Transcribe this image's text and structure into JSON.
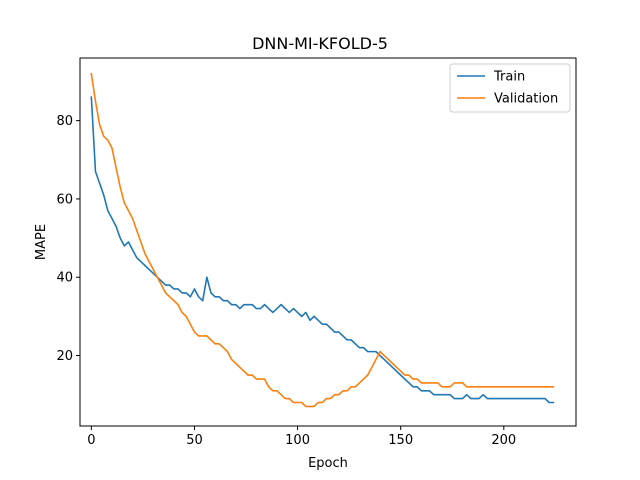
{
  "chart_data": {
    "type": "line",
    "title": "DNN-MI-KFOLD-5",
    "xlabel": "Epoch",
    "ylabel": "MAPE",
    "xlim": [
      -5.5,
      235
    ],
    "ylim": [
      2,
      96
    ],
    "xticks": [
      0,
      50,
      100,
      150,
      200
    ],
    "yticks": [
      20,
      40,
      60,
      80
    ],
    "grid": false,
    "legend_position": "top-right",
    "series": [
      {
        "name": "Train",
        "color": "#1f77b4",
        "x": [
          0,
          2,
          4,
          6,
          8,
          10,
          12,
          14,
          16,
          18,
          20,
          22,
          24,
          26,
          28,
          30,
          32,
          34,
          36,
          38,
          40,
          42,
          44,
          46,
          48,
          50,
          52,
          54,
          56,
          58,
          60,
          62,
          64,
          66,
          68,
          70,
          72,
          74,
          76,
          78,
          80,
          82,
          84,
          86,
          88,
          90,
          92,
          94,
          96,
          98,
          100,
          102,
          104,
          106,
          108,
          110,
          112,
          114,
          116,
          118,
          120,
          122,
          124,
          126,
          128,
          130,
          132,
          134,
          136,
          138,
          140,
          142,
          144,
          146,
          148,
          150,
          152,
          154,
          156,
          158,
          160,
          162,
          164,
          166,
          168,
          170,
          172,
          174,
          176,
          178,
          180,
          182,
          184,
          186,
          188,
          190,
          192,
          194,
          196,
          198,
          200,
          202,
          204,
          206,
          208,
          210,
          212,
          214,
          216,
          218,
          220,
          222,
          224
        ],
        "values": [
          86,
          67,
          64,
          61,
          57,
          55,
          53,
          50,
          48,
          49,
          47,
          45,
          44,
          43,
          42,
          41,
          40,
          39,
          38,
          38,
          37,
          37,
          36,
          36,
          35,
          37,
          35,
          34,
          40,
          36,
          35,
          35,
          34,
          34,
          33,
          33,
          32,
          33,
          33,
          33,
          32,
          32,
          33,
          32,
          31,
          32,
          33,
          32,
          31,
          32,
          31,
          30,
          31,
          29,
          30,
          29,
          28,
          28,
          27,
          26,
          26,
          25,
          24,
          24,
          23,
          22,
          22,
          21,
          21,
          21,
          20,
          19,
          18,
          17,
          16,
          15,
          14,
          13,
          12,
          12,
          11,
          11,
          11,
          10,
          10,
          10,
          10,
          10,
          9,
          9,
          9,
          10,
          9,
          9,
          9,
          10,
          9,
          9,
          9,
          9,
          9,
          9,
          9,
          9,
          9,
          9,
          9,
          9,
          9,
          9,
          9,
          8,
          8
        ]
      },
      {
        "name": "Validation",
        "color": "#ff7f0e",
        "x": [
          0,
          2,
          4,
          6,
          8,
          10,
          12,
          14,
          16,
          18,
          20,
          22,
          24,
          26,
          28,
          30,
          32,
          34,
          36,
          38,
          40,
          42,
          44,
          46,
          48,
          50,
          52,
          54,
          56,
          58,
          60,
          62,
          64,
          66,
          68,
          70,
          72,
          74,
          76,
          78,
          80,
          82,
          84,
          86,
          88,
          90,
          92,
          94,
          96,
          98,
          100,
          102,
          104,
          106,
          108,
          110,
          112,
          114,
          116,
          118,
          120,
          122,
          124,
          126,
          128,
          130,
          132,
          134,
          136,
          138,
          140,
          142,
          144,
          146,
          148,
          150,
          152,
          154,
          156,
          158,
          160,
          162,
          164,
          166,
          168,
          170,
          172,
          174,
          176,
          178,
          180,
          182,
          184,
          186,
          188,
          190,
          192,
          194,
          196,
          198,
          200,
          202,
          204,
          206,
          208,
          210,
          212,
          214,
          216,
          218,
          220,
          222,
          224
        ],
        "values": [
          92,
          85,
          79,
          76,
          75,
          73,
          68,
          63,
          59,
          57,
          55,
          52,
          49,
          46,
          44,
          42,
          40,
          38,
          36,
          35,
          34,
          33,
          31,
          30,
          28,
          26,
          25,
          25,
          25,
          24,
          23,
          23,
          22,
          21,
          19,
          18,
          17,
          16,
          15,
          15,
          14,
          14,
          14,
          12,
          11,
          11,
          10,
          9,
          9,
          8,
          8,
          8,
          7,
          7,
          7,
          8,
          8,
          9,
          9,
          10,
          10,
          11,
          11,
          12,
          12,
          13,
          14,
          15,
          17,
          19,
          21,
          20,
          19,
          18,
          17,
          16,
          15,
          15,
          14,
          14,
          13,
          13,
          13,
          13,
          13,
          12,
          12,
          12,
          13,
          13,
          13,
          12,
          12,
          12,
          12,
          12,
          12,
          12,
          12,
          12,
          12,
          12,
          12,
          12,
          12,
          12,
          12,
          12,
          12,
          12,
          12,
          12,
          12
        ]
      }
    ]
  }
}
